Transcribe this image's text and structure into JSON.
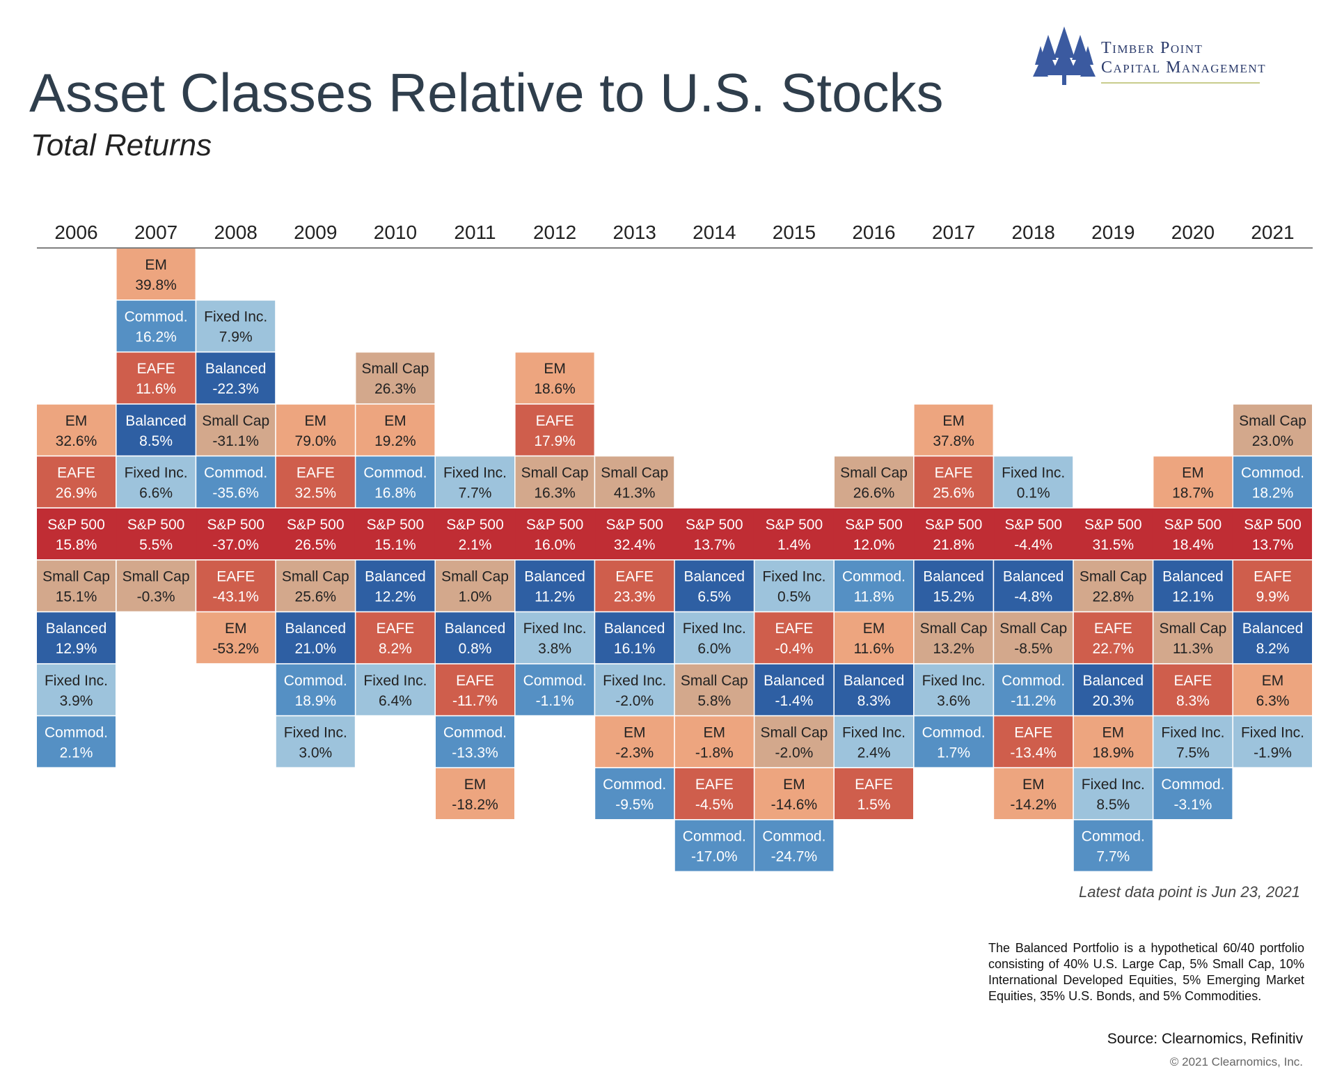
{
  "header": {
    "title": "Asset Classes Relative to U.S. Stocks",
    "subtitle": "Total Returns"
  },
  "logo": {
    "line1": "Timber Point",
    "line2": "Capital Management",
    "icon": "pine-trees-icon"
  },
  "colors": {
    "EM": "#eda57f",
    "EAFE": "#cf5e4c",
    "S&P 500": "#c02d34",
    "Small Cap": "#d3a88c",
    "Balanced": "#2e5fa3",
    "Fixed Inc.": "#9dc3dc",
    "Commod.": "#5590c4"
  },
  "text_colors": {
    "EM": "#222222",
    "EAFE": "#ffffff",
    "S&P 500": "#ffffff",
    "Small Cap": "#222222",
    "Balanced": "#ffffff",
    "Fixed Inc.": "#222222",
    "Commod.": "#ffffff"
  },
  "chart_data": {
    "type": "table",
    "baseline": "S&P 500",
    "years": [
      "2006",
      "2007",
      "2008",
      "2009",
      "2010",
      "2011",
      "2012",
      "2013",
      "2014",
      "2015",
      "2016",
      "2017",
      "2018",
      "2019",
      "2020",
      "2021"
    ],
    "columns": [
      {
        "above": [
          [
            "EM",
            "32.6%"
          ],
          [
            "EAFE",
            "26.9%"
          ]
        ],
        "sp500": "15.8%",
        "below": [
          [
            "Small Cap",
            "15.1%"
          ],
          [
            "Balanced",
            "12.9%"
          ],
          [
            "Fixed Inc.",
            "3.9%"
          ],
          [
            "Commod.",
            "2.1%"
          ]
        ]
      },
      {
        "above": [
          [
            "EM",
            "39.8%"
          ],
          [
            "Commod.",
            "16.2%"
          ],
          [
            "EAFE",
            "11.6%"
          ],
          [
            "Balanced",
            "8.5%"
          ],
          [
            "Fixed Inc.",
            "6.6%"
          ]
        ],
        "sp500": "5.5%",
        "below": [
          [
            "Small Cap",
            "-0.3%"
          ]
        ]
      },
      {
        "above": [
          [
            "Fixed Inc.",
            "7.9%"
          ],
          [
            "Balanced",
            "-22.3%"
          ],
          [
            "Small Cap",
            "-31.1%"
          ],
          [
            "Commod.",
            "-35.6%"
          ]
        ],
        "sp500": "-37.0%",
        "below": [
          [
            "EAFE",
            "-43.1%"
          ],
          [
            "EM",
            "-53.2%"
          ]
        ]
      },
      {
        "above": [
          [
            "EM",
            "79.0%"
          ],
          [
            "EAFE",
            "32.5%"
          ]
        ],
        "sp500": "26.5%",
        "below": [
          [
            "Small Cap",
            "25.6%"
          ],
          [
            "Balanced",
            "21.0%"
          ],
          [
            "Commod.",
            "18.9%"
          ],
          [
            "Fixed Inc.",
            "3.0%"
          ]
        ]
      },
      {
        "above": [
          [
            "Small Cap",
            "26.3%"
          ],
          [
            "EM",
            "19.2%"
          ],
          [
            "Commod.",
            "16.8%"
          ]
        ],
        "sp500": "15.1%",
        "below": [
          [
            "Balanced",
            "12.2%"
          ],
          [
            "EAFE",
            "8.2%"
          ],
          [
            "Fixed Inc.",
            "6.4%"
          ]
        ]
      },
      {
        "above": [
          [
            "Fixed Inc.",
            "7.7%"
          ]
        ],
        "sp500": "2.1%",
        "below": [
          [
            "Small Cap",
            "1.0%"
          ],
          [
            "Balanced",
            "0.8%"
          ],
          [
            "EAFE",
            "-11.7%"
          ],
          [
            "Commod.",
            "-13.3%"
          ],
          [
            "EM",
            "-18.2%"
          ]
        ]
      },
      {
        "above": [
          [
            "EM",
            "18.6%"
          ],
          [
            "EAFE",
            "17.9%"
          ],
          [
            "Small Cap",
            "16.3%"
          ]
        ],
        "sp500": "16.0%",
        "below": [
          [
            "Balanced",
            "11.2%"
          ],
          [
            "Fixed Inc.",
            "3.8%"
          ],
          [
            "Commod.",
            "-1.1%"
          ]
        ]
      },
      {
        "above": [
          [
            "Small Cap",
            "41.3%"
          ]
        ],
        "sp500": "32.4%",
        "below": [
          [
            "EAFE",
            "23.3%"
          ],
          [
            "Balanced",
            "16.1%"
          ],
          [
            "Fixed Inc.",
            "-2.0%"
          ],
          [
            "EM",
            "-2.3%"
          ],
          [
            "Commod.",
            "-9.5%"
          ]
        ]
      },
      {
        "above": [],
        "sp500": "13.7%",
        "below": [
          [
            "Balanced",
            "6.5%"
          ],
          [
            "Fixed Inc.",
            "6.0%"
          ],
          [
            "Small Cap",
            "5.8%"
          ],
          [
            "EM",
            "-1.8%"
          ],
          [
            "EAFE",
            "-4.5%"
          ],
          [
            "Commod.",
            "-17.0%"
          ]
        ]
      },
      {
        "above": [],
        "sp500": "1.4%",
        "below": [
          [
            "Fixed Inc.",
            "0.5%"
          ],
          [
            "EAFE",
            "-0.4%"
          ],
          [
            "Balanced",
            "-1.4%"
          ],
          [
            "Small Cap",
            "-2.0%"
          ],
          [
            "EM",
            "-14.6%"
          ],
          [
            "Commod.",
            "-24.7%"
          ]
        ]
      },
      {
        "above": [
          [
            "Small Cap",
            "26.6%"
          ]
        ],
        "sp500": "12.0%",
        "below": [
          [
            "Commod.",
            "11.8%"
          ],
          [
            "EM",
            "11.6%"
          ],
          [
            "Balanced",
            "8.3%"
          ],
          [
            "Fixed Inc.",
            "2.4%"
          ],
          [
            "EAFE",
            "1.5%"
          ]
        ]
      },
      {
        "above": [
          [
            "EM",
            "37.8%"
          ],
          [
            "EAFE",
            "25.6%"
          ]
        ],
        "sp500": "21.8%",
        "below": [
          [
            "Balanced",
            "15.2%"
          ],
          [
            "Small Cap",
            "13.2%"
          ],
          [
            "Fixed Inc.",
            "3.6%"
          ],
          [
            "Commod.",
            "1.7%"
          ]
        ]
      },
      {
        "above": [
          [
            "Fixed Inc.",
            "0.1%"
          ]
        ],
        "sp500": "-4.4%",
        "below": [
          [
            "Balanced",
            "-4.8%"
          ],
          [
            "Small Cap",
            "-8.5%"
          ],
          [
            "Commod.",
            "-11.2%"
          ],
          [
            "EAFE",
            "-13.4%"
          ],
          [
            "EM",
            "-14.2%"
          ]
        ]
      },
      {
        "above": [],
        "sp500": "31.5%",
        "below": [
          [
            "Small Cap",
            "22.8%"
          ],
          [
            "EAFE",
            "22.7%"
          ],
          [
            "Balanced",
            "20.3%"
          ],
          [
            "EM",
            "18.9%"
          ],
          [
            "Fixed Inc.",
            "8.5%"
          ],
          [
            "Commod.",
            "7.7%"
          ]
        ]
      },
      {
        "above": [
          [
            "EM",
            "18.7%"
          ]
        ],
        "sp500": "18.4%",
        "below": [
          [
            "Balanced",
            "12.1%"
          ],
          [
            "Small Cap",
            "11.3%"
          ],
          [
            "EAFE",
            "8.3%"
          ],
          [
            "Fixed Inc.",
            "7.5%"
          ],
          [
            "Commod.",
            "-3.1%"
          ]
        ]
      },
      {
        "above": [
          [
            "Small Cap",
            "23.0%"
          ],
          [
            "Commod.",
            "18.2%"
          ]
        ],
        "sp500": "13.7%",
        "below": [
          [
            "EAFE",
            "9.9%"
          ],
          [
            "Balanced",
            "8.2%"
          ],
          [
            "EM",
            "6.3%"
          ],
          [
            "Fixed Inc.",
            "-1.9%"
          ]
        ]
      }
    ]
  },
  "footer": {
    "latest": "Latest data point is Jun 23, 2021",
    "note": "The Balanced Portfolio is a hypothetical 60/40 portfolio consisting of 40% U.S. Large Cap, 5% Small Cap, 10% International Developed Equities, 5% Emerging Market Equities, 35% U.S. Bonds, and 5% Commodities.",
    "source": "Source: Clearnomics, Refinitiv",
    "copyright": "© 2021 Clearnomics, Inc."
  }
}
